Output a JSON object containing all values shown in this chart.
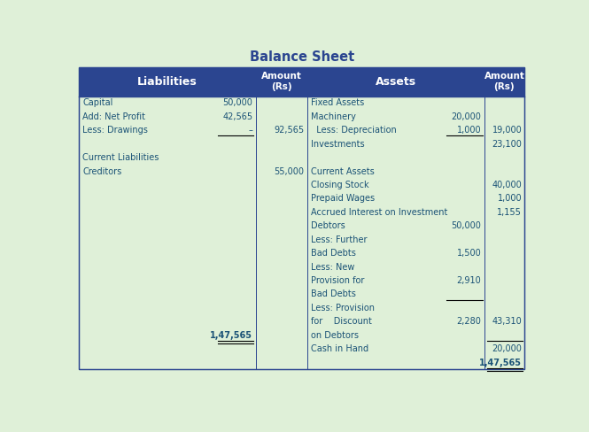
{
  "title": "Balance Sheet",
  "title_color": "#2B4590",
  "header_bg": "#2B4590",
  "header_text_color": "#FFFFFF",
  "body_bg": "#DFF0D8",
  "body_text_color": "#1A5276",
  "border_color": "#2B4590",
  "fig_bg": "#DFF0D8",
  "liabilities": [
    {
      "label": "Capital",
      "col1": "50,000",
      "col2": "",
      "ul1": false,
      "ul2": false,
      "bold": false
    },
    {
      "label": "Add: Net Profit",
      "col1": "42,565",
      "col2": "",
      "ul1": false,
      "ul2": false,
      "bold": false
    },
    {
      "label": "Less: Drawings",
      "col1": "–",
      "col2": "92,565",
      "ul1": true,
      "ul2": false,
      "bold": false
    },
    {
      "label": "",
      "col1": "",
      "col2": "",
      "ul1": false,
      "ul2": false,
      "bold": false
    },
    {
      "label": "Current Liabilities",
      "col1": "",
      "col2": "",
      "ul1": false,
      "ul2": false,
      "bold": false
    },
    {
      "label": "Creditors",
      "col1": "",
      "col2": "55,000",
      "ul1": false,
      "ul2": false,
      "bold": false
    },
    {
      "label": "",
      "col1": "",
      "col2": "",
      "ul1": false,
      "ul2": false,
      "bold": false
    },
    {
      "label": "",
      "col1": "",
      "col2": "",
      "ul1": false,
      "ul2": false,
      "bold": false
    },
    {
      "label": "",
      "col1": "",
      "col2": "",
      "ul1": false,
      "ul2": false,
      "bold": false
    },
    {
      "label": "",
      "col1": "",
      "col2": "",
      "ul1": false,
      "ul2": false,
      "bold": false
    },
    {
      "label": "",
      "col1": "",
      "col2": "",
      "ul1": false,
      "ul2": false,
      "bold": false
    },
    {
      "label": "",
      "col1": "",
      "col2": "",
      "ul1": false,
      "ul2": false,
      "bold": false
    },
    {
      "label": "",
      "col1": "",
      "col2": "",
      "ul1": false,
      "ul2": false,
      "bold": false
    },
    {
      "label": "",
      "col1": "",
      "col2": "",
      "ul1": false,
      "ul2": false,
      "bold": false
    },
    {
      "label": "",
      "col1": "",
      "col2": "",
      "ul1": false,
      "ul2": false,
      "bold": false
    },
    {
      "label": "",
      "col1": "",
      "col2": "",
      "ul1": false,
      "ul2": false,
      "bold": false
    },
    {
      "label": "",
      "col1": "",
      "col2": "",
      "ul1": false,
      "ul2": false,
      "bold": false
    },
    {
      "label": "",
      "col1": "1,47,565",
      "col2": "",
      "ul1": true,
      "ul2": false,
      "bold": true,
      "double_ul1": true
    }
  ],
  "assets": [
    {
      "label": "Fixed Assets",
      "col1": "",
      "col2": "",
      "ul1": false,
      "ul2": false,
      "bold": false
    },
    {
      "label": "Machinery",
      "col1": "20,000",
      "col2": "",
      "ul1": false,
      "ul2": false,
      "bold": false
    },
    {
      "label": "  Less: Depreciation",
      "col1": "1,000",
      "col2": "19,000",
      "ul1": true,
      "ul2": false,
      "bold": false
    },
    {
      "label": "Investments",
      "col1": "",
      "col2": "23,100",
      "ul1": false,
      "ul2": false,
      "bold": false
    },
    {
      "label": "",
      "col1": "",
      "col2": "",
      "ul1": false,
      "ul2": false,
      "bold": false
    },
    {
      "label": "Current Assets",
      "col1": "",
      "col2": "",
      "ul1": false,
      "ul2": false,
      "bold": false
    },
    {
      "label": "Closing Stock",
      "col1": "",
      "col2": "40,000",
      "ul1": false,
      "ul2": false,
      "bold": false
    },
    {
      "label": "Prepaid Wages",
      "col1": "",
      "col2": "1,000",
      "ul1": false,
      "ul2": false,
      "bold": false
    },
    {
      "label": "Accrued Interest on Investment",
      "col1": "",
      "col2": "1,155",
      "ul1": false,
      "ul2": false,
      "bold": false
    },
    {
      "label": "Debtors",
      "col1": "50,000",
      "col2": "",
      "ul1": false,
      "ul2": false,
      "bold": false
    },
    {
      "label": "Less: Further",
      "col1": "",
      "col2": "",
      "ul1": false,
      "ul2": false,
      "bold": false
    },
    {
      "label": "Bad Debts",
      "col1": "1,500",
      "col2": "",
      "ul1": false,
      "ul2": false,
      "bold": false
    },
    {
      "label": "Less: New",
      "col1": "",
      "col2": "",
      "ul1": false,
      "ul2": false,
      "bold": false
    },
    {
      "label": "Provision for",
      "col1": "2,910",
      "col2": "",
      "ul1": false,
      "ul2": false,
      "bold": false
    },
    {
      "label": "Bad Debts",
      "col1": "",
      "col2": "",
      "ul1": true,
      "ul2": false,
      "bold": false
    },
    {
      "label": "Less: Provision",
      "col1": "",
      "col2": "",
      "ul1": false,
      "ul2": false,
      "bold": false
    },
    {
      "label": "for    Discount",
      "col1": "2,280",
      "col2": "43,310",
      "ul1": false,
      "ul2": false,
      "bold": false
    },
    {
      "label": "on Debtors",
      "col1": "",
      "col2": "",
      "ul1": false,
      "ul2": true,
      "bold": false
    },
    {
      "label": "Cash in Hand",
      "col1": "",
      "col2": "20,000",
      "ul1": false,
      "ul2": false,
      "bold": false
    },
    {
      "label": "",
      "col1": "",
      "col2": "1,47,565",
      "ul1": false,
      "ul2": true,
      "bold": true,
      "double_ul2": true
    }
  ]
}
